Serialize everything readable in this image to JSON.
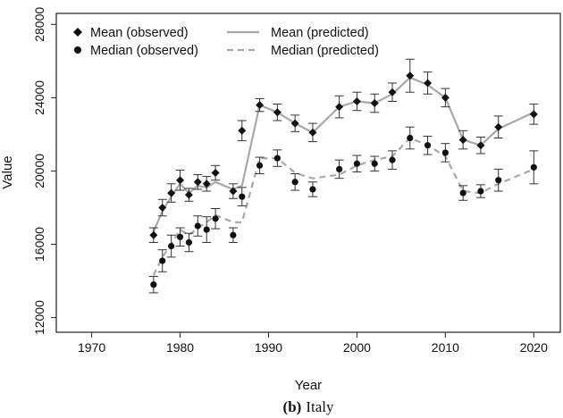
{
  "chart_data": {
    "type": "line",
    "caption_letter": "(b)",
    "caption_text": "Italy",
    "xlabel": "Year",
    "ylabel": "Value",
    "xlim": [
      1966,
      2023
    ],
    "ylim": [
      11200,
      28600
    ],
    "x_ticks": [
      1970,
      1980,
      1990,
      2000,
      2010,
      2020
    ],
    "y_ticks": [
      12000,
      16000,
      20000,
      24000,
      28000
    ],
    "colors": {
      "observed": "#111111",
      "predicted": "#a8a8a8",
      "errorbar": "#333333"
    },
    "legend": {
      "position": "top-left",
      "entries": [
        {
          "label": "Mean (observed)",
          "marker": "diamond"
        },
        {
          "label": "Median (observed)",
          "marker": "circle"
        },
        {
          "label": "Mean (predicted)",
          "line": "solid"
        },
        {
          "label": "Median (predicted)",
          "line": "dashed"
        }
      ]
    },
    "x": [
      1977,
      1978,
      1979,
      1980,
      1981,
      1982,
      1983,
      1984,
      1986,
      1987,
      1989,
      1991,
      1993,
      1995,
      1998,
      2000,
      2002,
      2004,
      2006,
      2008,
      2010,
      2012,
      2014,
      2016,
      2020
    ],
    "series": [
      {
        "name": "Mean (observed)",
        "marker": "diamond",
        "values": [
          16500,
          18000,
          18800,
          19500,
          18700,
          19400,
          19300,
          19900,
          18900,
          22200,
          23600,
          23200,
          22600,
          22100,
          23500,
          23800,
          23700,
          24300,
          25200,
          24800,
          24000,
          21700,
          21400,
          22400,
          23100
        ],
        "err": [
          400,
          450,
          500,
          550,
          350,
          400,
          400,
          400,
          400,
          550,
          350,
          450,
          450,
          500,
          600,
          500,
          500,
          500,
          900,
          600,
          500,
          500,
          450,
          600,
          550
        ]
      },
      {
        "name": "Median (observed)",
        "marker": "circle",
        "values": [
          13800,
          15100,
          15900,
          16400,
          16100,
          17000,
          16800,
          17400,
          16500,
          18600,
          20300,
          20700,
          19400,
          19000,
          20100,
          20400,
          20400,
          20600,
          21800,
          21400,
          21000,
          18800,
          18900,
          19500,
          20200
        ],
        "err": [
          450,
          600,
          600,
          500,
          500,
          550,
          700,
          550,
          400,
          500,
          450,
          450,
          450,
          400,
          500,
          450,
          400,
          500,
          600,
          500,
          500,
          400,
          350,
          600,
          900
        ]
      },
      {
        "name": "Mean (predicted)",
        "line": "solid",
        "values": [
          16700,
          17800,
          18600,
          19300,
          18800,
          19200,
          19100,
          19400,
          19000,
          19200,
          23600,
          23200,
          22600,
          22100,
          23500,
          23800,
          23700,
          24200,
          25100,
          24700,
          24000,
          21700,
          21400,
          22300,
          23200
        ]
      },
      {
        "name": "Median (predicted)",
        "line": "dashed",
        "values": [
          14300,
          15300,
          16000,
          16800,
          16500,
          16900,
          17200,
          17600,
          17200,
          17200,
          20700,
          20700,
          19900,
          19600,
          19800,
          20300,
          20600,
          20800,
          21800,
          21400,
          20800,
          18900,
          18800,
          19300,
          20100
        ]
      }
    ]
  }
}
